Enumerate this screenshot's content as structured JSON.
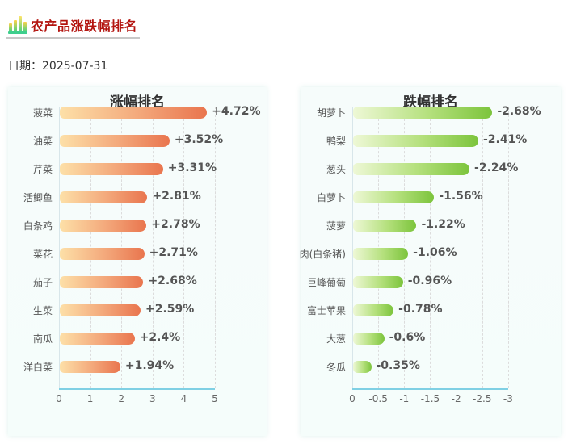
{
  "header": {
    "title": "农产品涨跌幅排名",
    "icon": "bar-chart-icon",
    "date_label": "日期：2025-07-31"
  },
  "colors": {
    "title": "#b3140f",
    "rise_bar_start": "#fde0a8",
    "rise_bar_end": "#e9754e",
    "fall_bar_start": "#eef8d6",
    "fall_bar_end": "#7cc43c",
    "axis_line": "#7fd0e4",
    "card_bg": "#f6fcfb"
  },
  "chart_data": [
    {
      "type": "bar",
      "orientation": "horizontal",
      "title": "涨幅排名",
      "categories": [
        "菠菜",
        "油菜",
        "芹菜",
        "活鲫鱼",
        "白条鸡",
        "菜花",
        "茄子",
        "生菜",
        "南瓜",
        "洋白菜"
      ],
      "values": [
        4.72,
        3.52,
        3.31,
        2.81,
        2.78,
        2.71,
        2.68,
        2.59,
        2.4,
        1.94
      ],
      "labels": [
        "+4.72%",
        "+3.52%",
        "+3.31%",
        "+2.81%",
        "+2.78%",
        "+2.71%",
        "+2.68%",
        "+2.59%",
        "+2.4%",
        "+1.94%"
      ],
      "xlabel": "",
      "ylabel": "",
      "xlim": [
        0,
        5
      ],
      "xticks": [
        "0",
        "1",
        "2",
        "3",
        "4",
        "5"
      ],
      "grid": "vertical dashed"
    },
    {
      "type": "bar",
      "orientation": "horizontal",
      "title": "跌幅排名",
      "categories": [
        "胡萝卜",
        "鸭梨",
        "葱头",
        "白萝卜",
        "菠萝",
        "肉(白条猪)",
        "巨峰葡萄",
        "富士苹果",
        "大葱",
        "冬瓜"
      ],
      "values": [
        -2.68,
        -2.41,
        -2.24,
        -1.56,
        -1.22,
        -1.06,
        -0.96,
        -0.78,
        -0.6,
        -0.35
      ],
      "labels": [
        "-2.68%",
        "-2.41%",
        "-2.24%",
        "-1.56%",
        "-1.22%",
        "-1.06%",
        "-0.96%",
        "-0.78%",
        "-0.6%",
        "-0.35%"
      ],
      "xlabel": "",
      "ylabel": "",
      "xlim": [
        0,
        -3
      ],
      "xticks": [
        "0",
        "-0.5",
        "-1",
        "-1.5",
        "-2",
        "-2.5",
        "-3"
      ],
      "grid": "vertical dashed"
    }
  ]
}
